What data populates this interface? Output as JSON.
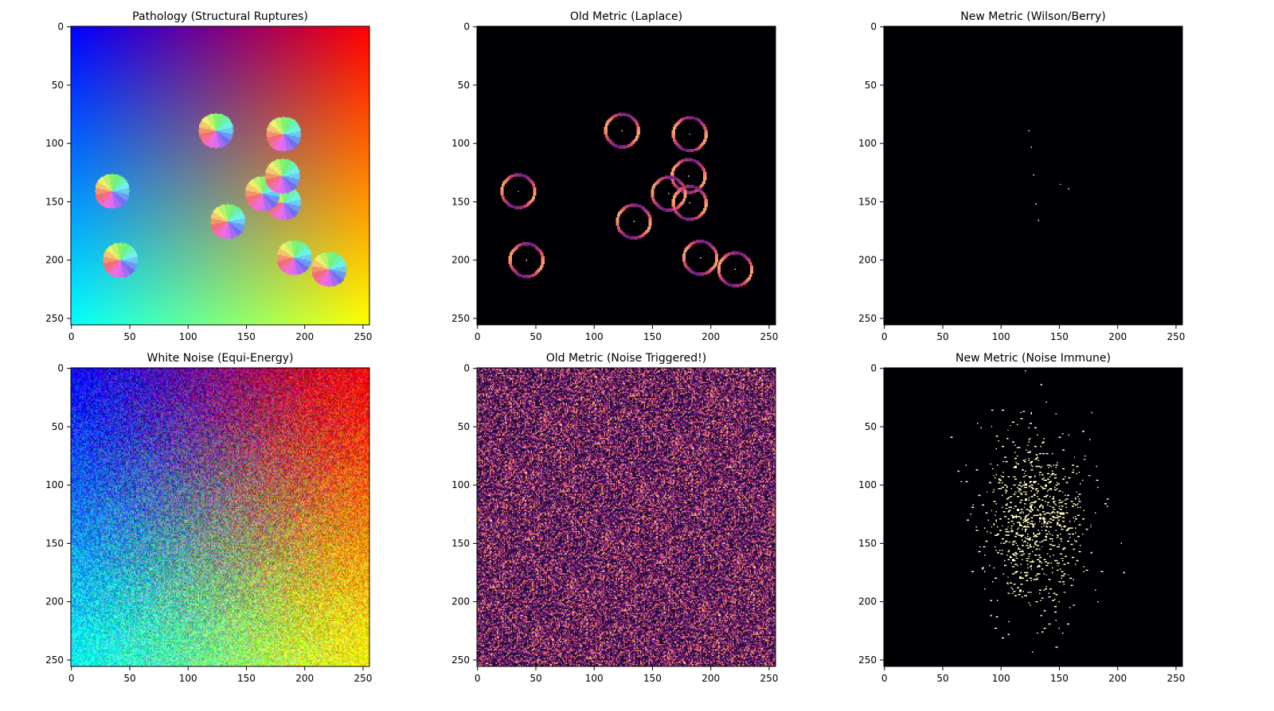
{
  "figure": {
    "layout": "2x3 grid of image panels",
    "background": "#ffffff"
  },
  "chart_data": [
    {
      "type": "heatmap",
      "title": "Pathology (Structural Ruptures)",
      "render": "hue-field",
      "noise": 0,
      "xlim": [
        0,
        255
      ],
      "ylim": [
        255,
        0
      ],
      "xticks": [
        "0",
        "50",
        "100",
        "150",
        "200",
        "250"
      ],
      "yticks": [
        "0",
        "50",
        "100",
        "150",
        "200",
        "250"
      ],
      "colormap": "hsv-phase",
      "defects": [
        {
          "x": 124,
          "y": 89
        },
        {
          "x": 182,
          "y": 92
        },
        {
          "x": 181,
          "y": 128
        },
        {
          "x": 35,
          "y": 141
        },
        {
          "x": 164,
          "y": 143
        },
        {
          "x": 182,
          "y": 151
        },
        {
          "x": 134,
          "y": 167
        },
        {
          "x": 42,
          "y": 200
        },
        {
          "x": 191,
          "y": 198
        },
        {
          "x": 221,
          "y": 208
        }
      ]
    },
    {
      "type": "heatmap",
      "title": "Old Metric (Laplace)",
      "render": "rings",
      "xlim": [
        0,
        255
      ],
      "ylim": [
        255,
        0
      ],
      "xticks": [
        "0",
        "50",
        "100",
        "150",
        "200",
        "250"
      ],
      "yticks": [
        "0",
        "50",
        "100",
        "150",
        "200",
        "250"
      ],
      "colormap": "magma",
      "background": "#000000",
      "ring_radius": 14,
      "rings": [
        {
          "x": 124,
          "y": 89
        },
        {
          "x": 182,
          "y": 92
        },
        {
          "x": 181,
          "y": 128
        },
        {
          "x": 35,
          "y": 141
        },
        {
          "x": 164,
          "y": 143
        },
        {
          "x": 182,
          "y": 151
        },
        {
          "x": 134,
          "y": 167
        },
        {
          "x": 42,
          "y": 200
        },
        {
          "x": 191,
          "y": 198
        },
        {
          "x": 221,
          "y": 208
        }
      ]
    },
    {
      "type": "heatmap",
      "title": "New Metric (Wilson/Berry)",
      "render": "sparse-points",
      "xlim": [
        0,
        255
      ],
      "ylim": [
        255,
        0
      ],
      "xticks": [
        "0",
        "50",
        "100",
        "150",
        "200",
        "250"
      ],
      "yticks": [
        "0",
        "50",
        "100",
        "150",
        "200",
        "250"
      ],
      "colormap": "magma",
      "background": "#000000",
      "point_color": "#fcfdbf",
      "points": [
        {
          "x": 124,
          "y": 89
        },
        {
          "x": 126,
          "y": 103
        },
        {
          "x": 128,
          "y": 127
        },
        {
          "x": 151,
          "y": 135
        },
        {
          "x": 158,
          "y": 139
        },
        {
          "x": 130,
          "y": 152
        },
        {
          "x": 132,
          "y": 166
        }
      ]
    },
    {
      "type": "heatmap",
      "title": "White Noise (Equi-Energy)",
      "render": "hue-field",
      "noise": 1,
      "xlim": [
        0,
        255
      ],
      "ylim": [
        255,
        0
      ],
      "xticks": [
        "0",
        "50",
        "100",
        "150",
        "200",
        "250"
      ],
      "yticks": [
        "0",
        "50",
        "100",
        "150",
        "200",
        "250"
      ],
      "colormap": "hsv-phase",
      "defects": []
    },
    {
      "type": "heatmap",
      "title": "Old Metric (Noise Triggered!)",
      "render": "noise-speckle",
      "xlim": [
        0,
        255
      ],
      "ylim": [
        255,
        0
      ],
      "xticks": [
        "0",
        "50",
        "100",
        "150",
        "200",
        "250"
      ],
      "yticks": [
        "0",
        "50",
        "100",
        "150",
        "200",
        "250"
      ],
      "colormap": "magma",
      "background": "#000000"
    },
    {
      "type": "heatmap",
      "title": "New Metric (Noise Immune)",
      "render": "gaussian-scatter",
      "xlim": [
        0,
        255
      ],
      "ylim": [
        255,
        0
      ],
      "xticks": [
        "0",
        "50",
        "100",
        "150",
        "200",
        "250"
      ],
      "yticks": [
        "0",
        "50",
        "100",
        "150",
        "200",
        "250"
      ],
      "colormap": "magma",
      "background": "#000000",
      "point_color": "#fcfdbf",
      "cluster_center": {
        "x": 128,
        "y": 128
      },
      "cluster_spread": {
        "x": 22,
        "y": 38
      },
      "cluster_count": 900
    }
  ]
}
